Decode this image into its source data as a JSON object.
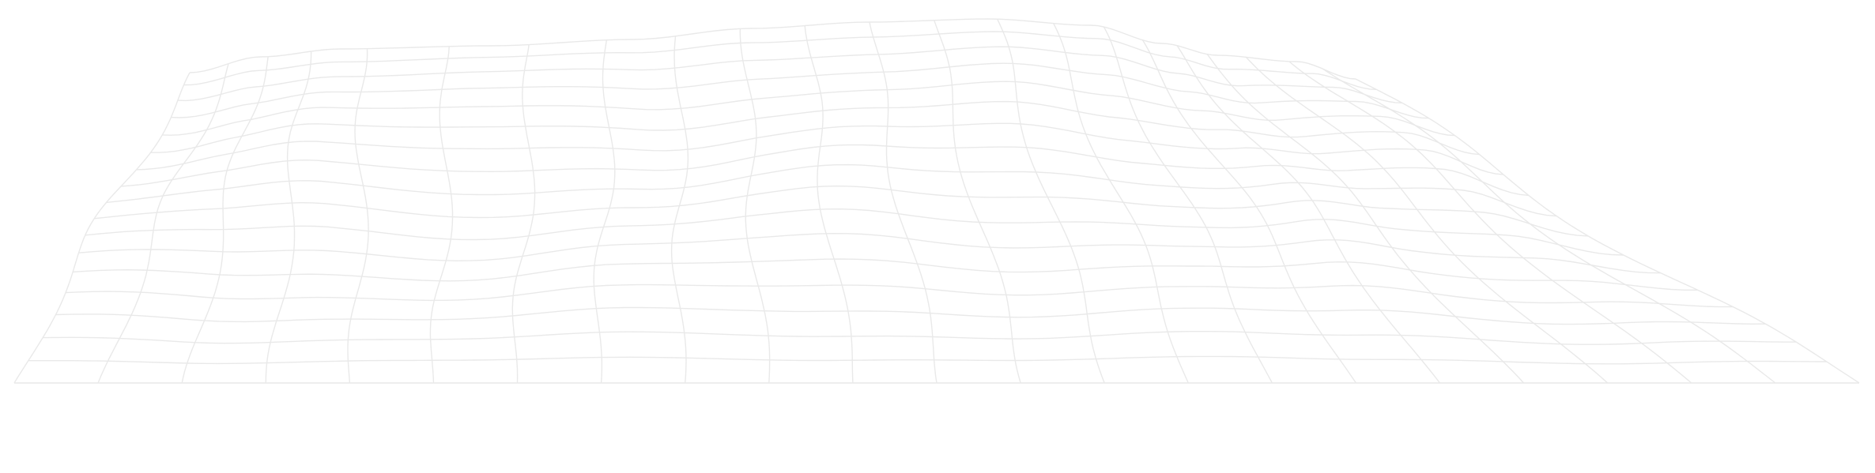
{
  "mesh": {
    "line_color": "#e9e9e9",
    "background_color": "#ffffff"
  }
}
